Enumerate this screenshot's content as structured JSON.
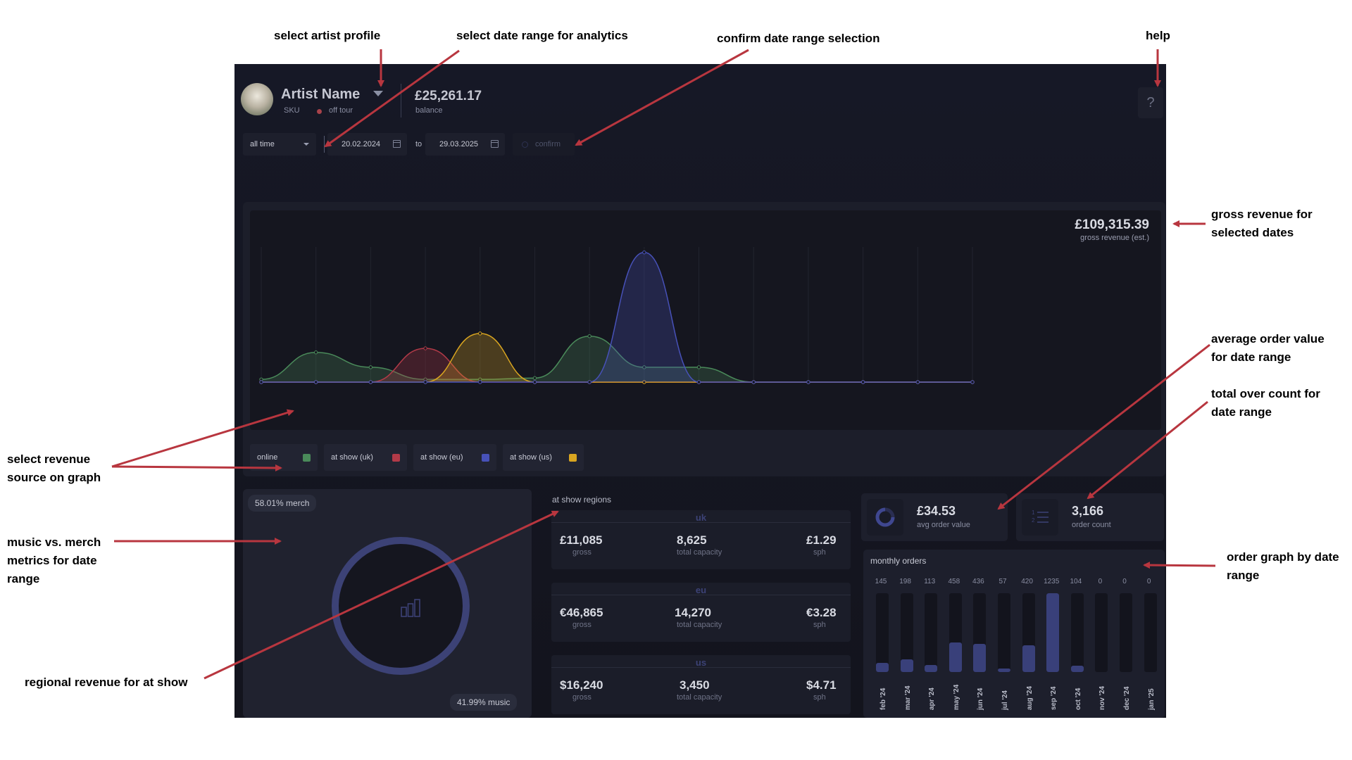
{
  "annotations": {
    "select_artist": "select artist profile",
    "select_date_range": "select date range for analytics",
    "confirm_date": "confirm date range selection",
    "help": "help",
    "gross_revenue_l1": "gross revenue for",
    "gross_revenue_l2": "selected dates",
    "avg_order_l1": "average order value",
    "avg_order_l2": "for  date range",
    "total_count_l1": "total over count for",
    "total_count_l2": "date range",
    "revenue_source_l1": "select revenue",
    "revenue_source_l2": "source on graph",
    "music_merch_l1": "music vs. merch",
    "music_merch_l2": "metrics for date",
    "music_merch_l3": "range",
    "regional_revenue": "regional revenue for at show",
    "order_graph_l1": "order graph by date",
    "order_graph_l2": "range"
  },
  "header": {
    "artist_name": "Artist Name",
    "sku": "SKU",
    "status": "off tour",
    "status_color": "#a8424a",
    "balance": "£25,261.17",
    "balance_label": "balance",
    "help_icon": "?"
  },
  "controls": {
    "range_select": "all time",
    "date_from": "20.02.2024",
    "to_label": "to",
    "date_to": "29.03.2025",
    "confirm": "confirm"
  },
  "gross": {
    "value": "£109,315.39",
    "label": "gross revenue (est.)"
  },
  "sources": [
    {
      "label": "online",
      "color": "#4a8a5a"
    },
    {
      "label": "at show (uk)",
      "color": "#b23a48"
    },
    {
      "label": "at show (eu)",
      "color": "#4751b8"
    },
    {
      "label": "at show (us)",
      "color": "#d9a520"
    }
  ],
  "chart_data": {
    "type": "area",
    "x_points": 14,
    "series": [
      {
        "name": "online",
        "color": "#4a8a5a",
        "values": [
          2,
          22,
          11,
          2,
          2,
          3,
          34,
          11,
          11,
          0,
          0,
          0,
          0,
          0
        ]
      },
      {
        "name": "at show (uk)",
        "color": "#b23a48",
        "values": [
          0,
          0,
          0,
          25,
          0,
          0,
          0,
          0,
          0,
          0,
          0,
          0,
          0,
          0
        ]
      },
      {
        "name": "at show (us)",
        "color": "#d9a520",
        "values": [
          0,
          0,
          0,
          0,
          36,
          0,
          0,
          0,
          0,
          0,
          0,
          0,
          0,
          0
        ]
      },
      {
        "name": "at show (eu)",
        "color": "#4751b8",
        "values": [
          0,
          0,
          0,
          0,
          0,
          0,
          0,
          96,
          0,
          0,
          0,
          0,
          0,
          0
        ]
      }
    ],
    "ylim": [
      0,
      100
    ],
    "grid": true
  },
  "merch": {
    "merch_pct": "58.01% merch",
    "music_pct": "41.99% music",
    "icon": "bar-chart-icon"
  },
  "regions": {
    "title": "at show regions",
    "items": [
      {
        "name": "uk",
        "gross": "£11,085",
        "gross_label": "gross",
        "capacity": "8,625",
        "capacity_label": "total capacity",
        "sph": "£1.29",
        "sph_label": "sph"
      },
      {
        "name": "eu",
        "gross": "€46,865",
        "gross_label": "gross",
        "capacity": "14,270",
        "capacity_label": "total capacity",
        "sph": "€3.28",
        "sph_label": "sph"
      },
      {
        "name": "us",
        "gross": "$16,240",
        "gross_label": "gross",
        "capacity": "3,450",
        "capacity_label": "total capacity",
        "sph": "$4.71",
        "sph_label": "sph"
      }
    ]
  },
  "kpis": {
    "avg_order_value": "£34.53",
    "avg_order_label": "avg order value",
    "order_count": "3,166",
    "order_count_label": "order count"
  },
  "monthly_orders": {
    "title": "monthly orders",
    "max": 1235,
    "items": [
      {
        "month": "feb '24",
        "count": "145",
        "value": 145
      },
      {
        "month": "mar '24",
        "count": "198",
        "value": 198
      },
      {
        "month": "apr '24",
        "count": "113",
        "value": 113
      },
      {
        "month": "may '24",
        "count": "458",
        "value": 458
      },
      {
        "month": "jun '24",
        "count": "436",
        "value": 436
      },
      {
        "month": "jul '24",
        "count": "57",
        "value": 57
      },
      {
        "month": "aug '24",
        "count": "420",
        "value": 420
      },
      {
        "month": "sep '24",
        "count": "1235",
        "value": 1235
      },
      {
        "month": "oct '24",
        "count": "104",
        "value": 104
      },
      {
        "month": "nov '24",
        "count": "0",
        "value": 0
      },
      {
        "month": "dec '24",
        "count": "0",
        "value": 0
      },
      {
        "month": "jan '25",
        "count": "0",
        "value": 0
      }
    ]
  }
}
